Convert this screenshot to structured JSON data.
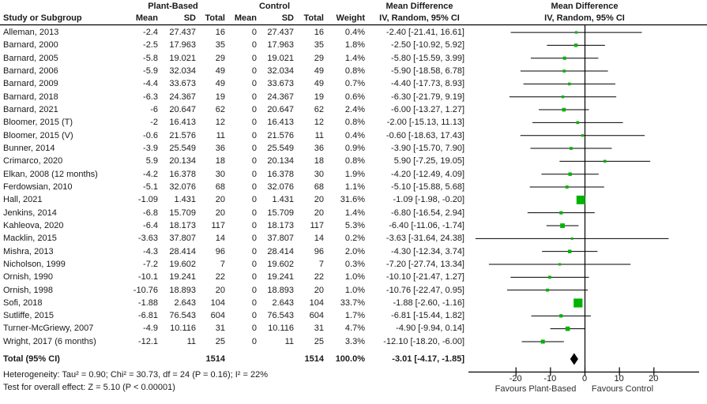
{
  "chart_data": {
    "type": "scatter",
    "subtype": "forest-plot",
    "effect_measure": "Mean Difference",
    "model": "IV, Random, 95% CI",
    "header": {
      "group1": "Plant-Based",
      "group2": "Control",
      "study": "Study or Subgroup",
      "mean": "Mean",
      "sd": "SD",
      "total": "Total",
      "weight": "Weight",
      "md_line1": "Mean Difference",
      "md_line2": "IV, Random, 95% CI"
    },
    "studies": [
      {
        "label": "Alleman, 2013",
        "pb_mean": "-2.4",
        "pb_sd": "27.437",
        "pb_total": "16",
        "c_mean": "0",
        "c_sd": "27.437",
        "c_total": "16",
        "weight": "0.4%",
        "ci_text": "-2.40 [-21.41, 16.61]",
        "md": -2.4,
        "lo": -21.41,
        "hi": 16.61
      },
      {
        "label": "Barnard, 2000",
        "pb_mean": "-2.5",
        "pb_sd": "17.963",
        "pb_total": "35",
        "c_mean": "0",
        "c_sd": "17.963",
        "c_total": "35",
        "weight": "1.8%",
        "ci_text": "-2.50 [-10.92, 5.92]",
        "md": -2.5,
        "lo": -10.92,
        "hi": 5.92
      },
      {
        "label": "Barnard, 2005",
        "pb_mean": "-5.8",
        "pb_sd": "19.021",
        "pb_total": "29",
        "c_mean": "0",
        "c_sd": "19.021",
        "c_total": "29",
        "weight": "1.4%",
        "ci_text": "-5.80 [-15.59, 3.99]",
        "md": -5.8,
        "lo": -15.59,
        "hi": 3.99
      },
      {
        "label": "Barnard, 2006",
        "pb_mean": "-5.9",
        "pb_sd": "32.034",
        "pb_total": "49",
        "c_mean": "0",
        "c_sd": "32.034",
        "c_total": "49",
        "weight": "0.8%",
        "ci_text": "-5.90 [-18.58, 6.78]",
        "md": -5.9,
        "lo": -18.58,
        "hi": 6.78
      },
      {
        "label": "Barnard, 2009",
        "pb_mean": "-4.4",
        "pb_sd": "33.673",
        "pb_total": "49",
        "c_mean": "0",
        "c_sd": "33.673",
        "c_total": "49",
        "weight": "0.7%",
        "ci_text": "-4.40 [-17.73, 8.93]",
        "md": -4.4,
        "lo": -17.73,
        "hi": 8.93
      },
      {
        "label": "Barnard, 2018",
        "pb_mean": "-6.3",
        "pb_sd": "24.367",
        "pb_total": "19",
        "c_mean": "0",
        "c_sd": "24.367",
        "c_total": "19",
        "weight": "0.6%",
        "ci_text": "-6.30 [-21.79, 9.19]",
        "md": -6.3,
        "lo": -21.79,
        "hi": 9.19
      },
      {
        "label": "Barnard, 2021",
        "pb_mean": "-6",
        "pb_sd": "20.647",
        "pb_total": "62",
        "c_mean": "0",
        "c_sd": "20.647",
        "c_total": "62",
        "weight": "2.4%",
        "ci_text": "-6.00 [-13.27, 1.27]",
        "md": -6.0,
        "lo": -13.27,
        "hi": 1.27
      },
      {
        "label": "Bloomer, 2015 (T)",
        "pb_mean": "-2",
        "pb_sd": "16.413",
        "pb_total": "12",
        "c_mean": "0",
        "c_sd": "16.413",
        "c_total": "12",
        "weight": "0.8%",
        "ci_text": "-2.00 [-15.13, 11.13]",
        "md": -2.0,
        "lo": -15.13,
        "hi": 11.13
      },
      {
        "label": "Bloomer, 2015 (V)",
        "pb_mean": "-0.6",
        "pb_sd": "21.576",
        "pb_total": "11",
        "c_mean": "0",
        "c_sd": "21.576",
        "c_total": "11",
        "weight": "0.4%",
        "ci_text": "-0.60 [-18.63, 17.43]",
        "md": -0.6,
        "lo": -18.63,
        "hi": 17.43
      },
      {
        "label": "Bunner, 2014",
        "pb_mean": "-3.9",
        "pb_sd": "25.549",
        "pb_total": "36",
        "c_mean": "0",
        "c_sd": "25.549",
        "c_total": "36",
        "weight": "0.9%",
        "ci_text": "-3.90 [-15.70, 7.90]",
        "md": -3.9,
        "lo": -15.7,
        "hi": 7.9
      },
      {
        "label": "Crimarco, 2020",
        "pb_mean": "5.9",
        "pb_sd": "20.134",
        "pb_total": "18",
        "c_mean": "0",
        "c_sd": "20.134",
        "c_total": "18",
        "weight": "0.8%",
        "ci_text": "5.90 [-7.25, 19.05]",
        "md": 5.9,
        "lo": -7.25,
        "hi": 19.05
      },
      {
        "label": "Elkan, 2008 (12 months)",
        "pb_mean": "-4.2",
        "pb_sd": "16.378",
        "pb_total": "30",
        "c_mean": "0",
        "c_sd": "16.378",
        "c_total": "30",
        "weight": "1.9%",
        "ci_text": "-4.20 [-12.49, 4.09]",
        "md": -4.2,
        "lo": -12.49,
        "hi": 4.09
      },
      {
        "label": "Ferdowsian, 2010",
        "pb_mean": "-5.1",
        "pb_sd": "32.076",
        "pb_total": "68",
        "c_mean": "0",
        "c_sd": "32.076",
        "c_total": "68",
        "weight": "1.1%",
        "ci_text": "-5.10 [-15.88, 5.68]",
        "md": -5.1,
        "lo": -15.88,
        "hi": 5.68
      },
      {
        "label": "Hall, 2021",
        "pb_mean": "-1.09",
        "pb_sd": "1.431",
        "pb_total": "20",
        "c_mean": "0",
        "c_sd": "1.431",
        "c_total": "20",
        "weight": "31.6%",
        "ci_text": "-1.09 [-1.98, -0.20]",
        "md": -1.09,
        "lo": -1.98,
        "hi": -0.2
      },
      {
        "label": "Jenkins, 2014",
        "pb_mean": "-6.8",
        "pb_sd": "15.709",
        "pb_total": "20",
        "c_mean": "0",
        "c_sd": "15.709",
        "c_total": "20",
        "weight": "1.4%",
        "ci_text": "-6.80 [-16.54, 2.94]",
        "md": -6.8,
        "lo": -16.54,
        "hi": 2.94
      },
      {
        "label": "Kahleova, 2020",
        "pb_mean": "-6.4",
        "pb_sd": "18.173",
        "pb_total": "117",
        "c_mean": "0",
        "c_sd": "18.173",
        "c_total": "117",
        "weight": "5.3%",
        "ci_text": "-6.40 [-11.06, -1.74]",
        "md": -6.4,
        "lo": -11.06,
        "hi": -1.74
      },
      {
        "label": "Macklin, 2015",
        "pb_mean": "-3.63",
        "pb_sd": "37.807",
        "pb_total": "14",
        "c_mean": "0",
        "c_sd": "37.807",
        "c_total": "14",
        "weight": "0.2%",
        "ci_text": "-3.63 [-31.64, 24.38]",
        "md": -3.63,
        "lo": -31.64,
        "hi": 24.38
      },
      {
        "label": "Mishra, 2013",
        "pb_mean": "-4.3",
        "pb_sd": "28.414",
        "pb_total": "96",
        "c_mean": "0",
        "c_sd": "28.414",
        "c_total": "96",
        "weight": "2.0%",
        "ci_text": "-4.30 [-12.34, 3.74]",
        "md": -4.3,
        "lo": -12.34,
        "hi": 3.74
      },
      {
        "label": "Nicholson, 1999",
        "pb_mean": "-7.2",
        "pb_sd": "19.602",
        "pb_total": "7",
        "c_mean": "0",
        "c_sd": "19.602",
        "c_total": "7",
        "weight": "0.3%",
        "ci_text": "-7.20 [-27.74, 13.34]",
        "md": -7.2,
        "lo": -27.74,
        "hi": 13.34
      },
      {
        "label": "Ornish, 1990",
        "pb_mean": "-10.1",
        "pb_sd": "19.241",
        "pb_total": "22",
        "c_mean": "0",
        "c_sd": "19.241",
        "c_total": "22",
        "weight": "1.0%",
        "ci_text": "-10.10 [-21.47, 1.27]",
        "md": -10.1,
        "lo": -21.47,
        "hi": 1.27
      },
      {
        "label": "Ornish, 1998",
        "pb_mean": "-10.76",
        "pb_sd": "18.893",
        "pb_total": "20",
        "c_mean": "0",
        "c_sd": "18.893",
        "c_total": "20",
        "weight": "1.0%",
        "ci_text": "-10.76 [-22.47, 0.95]",
        "md": -10.76,
        "lo": -22.47,
        "hi": 0.95
      },
      {
        "label": "Sofi, 2018",
        "pb_mean": "-1.88",
        "pb_sd": "2.643",
        "pb_total": "104",
        "c_mean": "0",
        "c_sd": "2.643",
        "c_total": "104",
        "weight": "33.7%",
        "ci_text": "-1.88 [-2.60, -1.16]",
        "md": -1.88,
        "lo": -2.6,
        "hi": -1.16
      },
      {
        "label": "Sutliffe, 2015",
        "pb_mean": "-6.81",
        "pb_sd": "76.543",
        "pb_total": "604",
        "c_mean": "0",
        "c_sd": "76.543",
        "c_total": "604",
        "weight": "1.7%",
        "ci_text": "-6.81 [-15.44, 1.82]",
        "md": -6.81,
        "lo": -15.44,
        "hi": 1.82
      },
      {
        "label": "Turner-McGriewy, 2007",
        "pb_mean": "-4.9",
        "pb_sd": "10.116",
        "pb_total": "31",
        "c_mean": "0",
        "c_sd": "10.116",
        "c_total": "31",
        "weight": "4.7%",
        "ci_text": "-4.90 [-9.94, 0.14]",
        "md": -4.9,
        "lo": -9.94,
        "hi": 0.14
      },
      {
        "label": "Wright, 2017 (6 months)",
        "pb_mean": "-12.1",
        "pb_sd": "11",
        "pb_total": "25",
        "c_mean": "0",
        "c_sd": "11",
        "c_total": "25",
        "weight": "3.3%",
        "ci_text": "-12.10 [-18.20, -6.00]",
        "md": -12.1,
        "lo": -18.2,
        "hi": -6.0
      }
    ],
    "total": {
      "label": "Total (95% CI)",
      "pb_total": "1514",
      "c_total": "1514",
      "weight": "100.0%",
      "ci_text": "-3.01 [-4.17, -1.85]",
      "md": -3.01,
      "lo": -4.17,
      "hi": -1.85
    },
    "heterogeneity": "Heterogeneity: Tau² = 0.90; Chi² = 30.73, df = 24 (P = 0.16); I² = 22%",
    "overall_effect": "Test for overall effect: Z = 5.10 (P < 0.00001)",
    "axis": {
      "ticks": [
        -20,
        -10,
        0,
        10,
        20
      ],
      "range": [
        -30,
        30
      ],
      "favours_left": "Favours Plant-Based",
      "favours_right": "Favours Control"
    },
    "colors": {
      "marker": "#00b300",
      "diamond": "#000000",
      "line": "#000000"
    }
  }
}
